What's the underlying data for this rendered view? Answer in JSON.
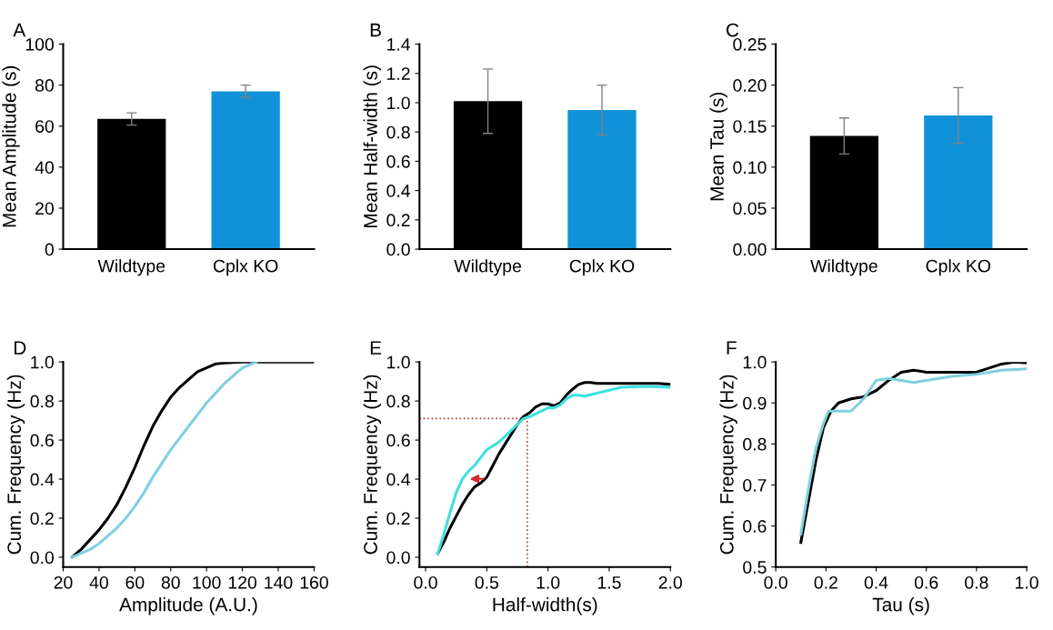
{
  "chart_data": [
    {
      "type": "bar",
      "title": "A",
      "ylabel": "Mean Amplitude (s)",
      "categories": [
        "Wildtype",
        "Cplx KO"
      ],
      "values": [
        63.5,
        77
      ],
      "colors": [
        "#000000",
        "#1192d8"
      ],
      "errors": [
        3,
        3
      ],
      "ylim": [
        0,
        100
      ],
      "yticks": [
        0,
        20,
        40,
        60,
        80,
        100
      ],
      "grid": false,
      "legend": false
    },
    {
      "type": "bar",
      "title": "B",
      "ylabel": "Mean Half-width (s)",
      "categories": [
        "Wildtype",
        "Cplx KO"
      ],
      "values": [
        1.01,
        0.95
      ],
      "colors": [
        "#000000",
        "#1192d8"
      ],
      "errors": [
        0.22,
        0.17
      ],
      "ylim": [
        0,
        1.4
      ],
      "yticks": [
        {
          "value": 0,
          "label": "0.0"
        },
        0.2,
        0.4,
        0.6,
        0.8,
        {
          "value": 1,
          "label": "1.0"
        },
        1.2,
        1.4
      ],
      "grid": false,
      "legend": false
    },
    {
      "type": "bar",
      "title": "C",
      "ylabel": "Mean Tau (s)",
      "categories": [
        "Wildtype",
        "Cplx KO"
      ],
      "values": [
        0.138,
        0.163
      ],
      "colors": [
        "#000000",
        "#1192d8"
      ],
      "errors": [
        0.022,
        0.034
      ],
      "ylim": [
        0,
        0.25
      ],
      "yticks": [
        {
          "value": 0,
          "label": "0.00"
        },
        0.05,
        {
          "value": 0.1,
          "label": "0.10"
        },
        0.15,
        {
          "value": 0.2,
          "label": "0.20"
        },
        0.25
      ],
      "grid": false,
      "legend": false
    },
    {
      "type": "line",
      "title": "D",
      "xlabel": "Amplitude (A.U.)",
      "ylabel": "Cum. Frequency (Hz)",
      "xlim": [
        20,
        160
      ],
      "xticks": [
        20,
        40,
        60,
        80,
        100,
        120,
        140,
        160
      ],
      "ylim": [
        -0.05,
        1.0
      ],
      "yticks": [
        {
          "value": 0,
          "label": "0.0"
        },
        0.2,
        0.4,
        0.6,
        0.8,
        {
          "value": 1,
          "label": "1.0"
        }
      ],
      "grid": false,
      "legend": false,
      "marker": "none",
      "line_style": "solid",
      "series": [
        {
          "color": "#000000",
          "x": [
            25,
            30,
            35,
            40,
            45,
            50,
            55,
            60,
            65,
            70,
            75,
            80,
            85,
            90,
            95,
            100,
            105,
            110,
            120,
            130,
            160
          ],
          "values": [
            0,
            0.04,
            0.09,
            0.14,
            0.2,
            0.27,
            0.36,
            0.46,
            0.57,
            0.67,
            0.75,
            0.82,
            0.87,
            0.91,
            0.95,
            0.97,
            0.99,
            0.995,
            1.0,
            1.0,
            1.0
          ]
        },
        {
          "color": "#7fd0e0",
          "x": [
            25,
            30,
            35,
            40,
            45,
            50,
            55,
            60,
            65,
            70,
            75,
            80,
            85,
            90,
            95,
            100,
            105,
            110,
            115,
            120,
            125,
            128
          ],
          "values": [
            0,
            0.02,
            0.04,
            0.07,
            0.11,
            0.15,
            0.2,
            0.26,
            0.33,
            0.41,
            0.48,
            0.55,
            0.61,
            0.67,
            0.73,
            0.79,
            0.84,
            0.89,
            0.93,
            0.97,
            0.99,
            1.0
          ]
        }
      ]
    },
    {
      "type": "line",
      "title": "E",
      "xlabel": "Half-width(s)",
      "ylabel": "Cum. Frequency (Hz)",
      "xlim": [
        -0.05,
        2.0
      ],
      "xticks": [
        {
          "value": 0,
          "label": "0.0"
        },
        0.5,
        {
          "value": 1,
          "label": "1.0"
        },
        1.5,
        {
          "value": 2,
          "label": "2.0"
        }
      ],
      "ylim": [
        -0.05,
        1.0
      ],
      "yticks": [
        {
          "value": 0,
          "label": "0.0"
        },
        0.2,
        0.4,
        0.6,
        0.8,
        {
          "value": 1,
          "label": "1.0"
        }
      ],
      "grid": false,
      "legend": false,
      "marker": "none",
      "line_style": "solid",
      "ref_lines": [
        {
          "axis": "y",
          "value": 0.71,
          "color": "#c0392b",
          "line_style": "dotted"
        },
        {
          "axis": "x",
          "value": 0.83,
          "color": "#c0392b",
          "line_style": "dotted"
        }
      ],
      "series": [
        {
          "color": "#000000",
          "x": [
            0.1,
            0.15,
            0.2,
            0.25,
            0.3,
            0.35,
            0.4,
            0.45,
            0.5,
            0.55,
            0.6,
            0.65,
            0.7,
            0.75,
            0.8,
            0.85,
            0.9,
            0.95,
            1.0,
            1.05,
            1.1,
            1.15,
            1.2,
            1.25,
            1.3,
            1.35,
            1.4,
            1.5,
            1.7,
            1.9,
            2.0
          ],
          "values": [
            0.02,
            0.08,
            0.15,
            0.21,
            0.27,
            0.32,
            0.36,
            0.38,
            0.41,
            0.47,
            0.53,
            0.58,
            0.63,
            0.68,
            0.72,
            0.74,
            0.77,
            0.785,
            0.785,
            0.775,
            0.79,
            0.83,
            0.86,
            0.885,
            0.895,
            0.895,
            0.89,
            0.89,
            0.89,
            0.89,
            0.885
          ]
        },
        {
          "color": "#3ee0e0",
          "x": [
            0.1,
            0.15,
            0.2,
            0.25,
            0.3,
            0.35,
            0.4,
            0.45,
            0.5,
            0.55,
            0.6,
            0.65,
            0.7,
            0.75,
            0.8,
            0.85,
            0.9,
            0.95,
            1.0,
            1.05,
            1.1,
            1.15,
            1.2,
            1.25,
            1.3,
            1.4,
            1.5,
            1.6,
            1.8,
            2.0
          ],
          "values": [
            0.02,
            0.12,
            0.23,
            0.33,
            0.4,
            0.44,
            0.47,
            0.51,
            0.55,
            0.57,
            0.59,
            0.62,
            0.65,
            0.68,
            0.71,
            0.72,
            0.735,
            0.75,
            0.765,
            0.765,
            0.78,
            0.81,
            0.83,
            0.83,
            0.825,
            0.84,
            0.855,
            0.87,
            0.875,
            0.87
          ]
        }
      ]
    },
    {
      "type": "line",
      "title": "F",
      "xlabel": "Tau (s)",
      "ylabel": "Cum. Frequency (Hz)",
      "xlim": [
        0,
        1.0
      ],
      "xticks": [
        {
          "value": 0,
          "label": "0.0"
        },
        0.2,
        0.4,
        0.6,
        0.8,
        {
          "value": 1,
          "label": "1.0"
        }
      ],
      "ylim": [
        0.5,
        1.0
      ],
      "yticks": [
        0.5,
        0.6,
        0.7,
        0.8,
        0.9,
        {
          "value": 1,
          "label": "1.0"
        }
      ],
      "grid": false,
      "legend": false,
      "marker": "none",
      "line_style": "solid",
      "series": [
        {
          "color": "#000000",
          "x": [
            0.1,
            0.13,
            0.16,
            0.19,
            0.22,
            0.25,
            0.3,
            0.35,
            0.4,
            0.45,
            0.5,
            0.55,
            0.6,
            0.7,
            0.8,
            0.85,
            0.9,
            0.95,
            1.0
          ],
          "values": [
            0.56,
            0.66,
            0.76,
            0.84,
            0.88,
            0.9,
            0.91,
            0.915,
            0.93,
            0.955,
            0.975,
            0.98,
            0.975,
            0.975,
            0.975,
            0.985,
            0.995,
            1.0,
            0.998
          ]
        },
        {
          "color": "#7fd0e0",
          "x": [
            0.1,
            0.13,
            0.16,
            0.19,
            0.21,
            0.25,
            0.3,
            0.35,
            0.4,
            0.45,
            0.5,
            0.55,
            0.6,
            0.7,
            0.8,
            0.9,
            1.0
          ],
          "values": [
            0.58,
            0.69,
            0.79,
            0.85,
            0.88,
            0.88,
            0.88,
            0.91,
            0.955,
            0.96,
            0.955,
            0.95,
            0.955,
            0.965,
            0.97,
            0.98,
            0.983
          ]
        }
      ]
    }
  ]
}
